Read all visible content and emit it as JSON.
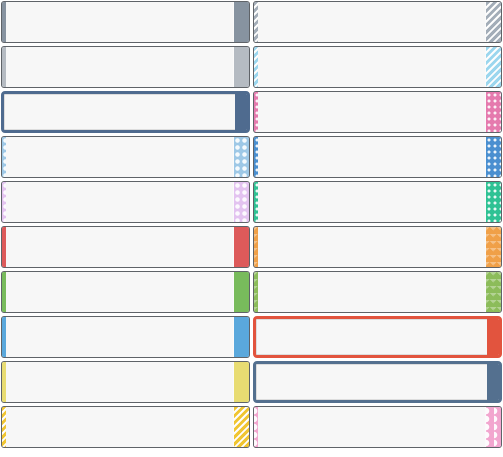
{
  "palette": {
    "left": [
      {
        "id": "gray-steel",
        "color": "#8793a0",
        "pattern": "plain"
      },
      {
        "id": "gray-light",
        "color": "#b5bbc2",
        "pattern": "plain"
      },
      {
        "id": "navy-solid",
        "color": "#4f6b8f",
        "pattern": "thick"
      },
      {
        "id": "blue-dots",
        "color": "#9ec8e6",
        "pattern": "circles"
      },
      {
        "id": "lilac-dots",
        "color": "#e3c3f0",
        "pattern": "circles"
      },
      {
        "id": "red",
        "color": "#dd5a5a",
        "pattern": "plain"
      },
      {
        "id": "green",
        "color": "#78bb5c",
        "pattern": "plain"
      },
      {
        "id": "blue",
        "color": "#5aa8dc",
        "pattern": "plain"
      },
      {
        "id": "yellow",
        "color": "#e8dc72",
        "pattern": "plain"
      },
      {
        "id": "gold-stripes",
        "color": "#f0c531",
        "pattern": "stripes"
      }
    ],
    "right": [
      {
        "id": "gray-stripes",
        "color": "#a3adb8",
        "pattern": "stripes"
      },
      {
        "id": "sky-stripes",
        "color": "#9bd6ee",
        "pattern": "stripes"
      },
      {
        "id": "pink-dots",
        "color": "#e57aae",
        "pattern": "dots"
      },
      {
        "id": "blue-dots-dark",
        "color": "#4a8fd0",
        "pattern": "dots"
      },
      {
        "id": "teal-dots",
        "color": "#2fc294",
        "pattern": "dots"
      },
      {
        "id": "orange-zigzag",
        "color": "#f0a048",
        "pattern": "zigzag"
      },
      {
        "id": "green-zigzag",
        "color": "#8cbc5a",
        "pattern": "zigzag"
      },
      {
        "id": "red-orange-solid",
        "color": "#e2543e",
        "pattern": "thick"
      },
      {
        "id": "slate-solid",
        "color": "#54708f",
        "pattern": "thick"
      },
      {
        "id": "pink-lace",
        "color": "#f2a6cf",
        "pattern": "lace"
      }
    ]
  }
}
